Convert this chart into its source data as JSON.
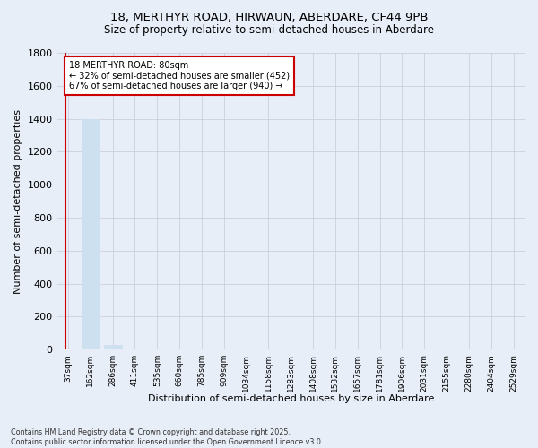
{
  "title_line1": "18, MERTHYR ROAD, HIRWAUN, ABERDARE, CF44 9PB",
  "title_line2": "Size of property relative to semi-detached houses in Aberdare",
  "xlabel": "Distribution of semi-detached houses by size in Aberdare",
  "ylabel": "Number of semi-detached properties",
  "categories": [
    "37sqm",
    "162sqm",
    "286sqm",
    "411sqm",
    "535sqm",
    "660sqm",
    "785sqm",
    "909sqm",
    "1034sqm",
    "1158sqm",
    "1283sqm",
    "1408sqm",
    "1532sqm",
    "1657sqm",
    "1781sqm",
    "1906sqm",
    "2031sqm",
    "2155sqm",
    "2280sqm",
    "2404sqm",
    "2529sqm"
  ],
  "values": [
    0,
    1400,
    30,
    0,
    0,
    0,
    0,
    0,
    0,
    0,
    0,
    0,
    0,
    0,
    0,
    0,
    0,
    0,
    0,
    0,
    0
  ],
  "bar_color": "#cce0f0",
  "bar_edge_color": "#cce0f0",
  "annotation_text_line1": "18 MERTHYR ROAD: 80sqm",
  "annotation_text_line2": "← 32% of semi-detached houses are smaller (452)",
  "annotation_text_line3": "67% of semi-detached houses are larger (940) →",
  "vline_color": "#cc0000",
  "annotation_box_color": "#ffffff",
  "annotation_box_edge": "#cc0000",
  "ylim": [
    0,
    1800
  ],
  "yticks": [
    0,
    200,
    400,
    600,
    800,
    1000,
    1200,
    1400,
    1600,
    1800
  ],
  "grid_color": "#c8c8d8",
  "bg_color": "#e8eef8",
  "footer_line1": "Contains HM Land Registry data © Crown copyright and database right 2025.",
  "footer_line2": "Contains public sector information licensed under the Open Government Licence v3.0."
}
